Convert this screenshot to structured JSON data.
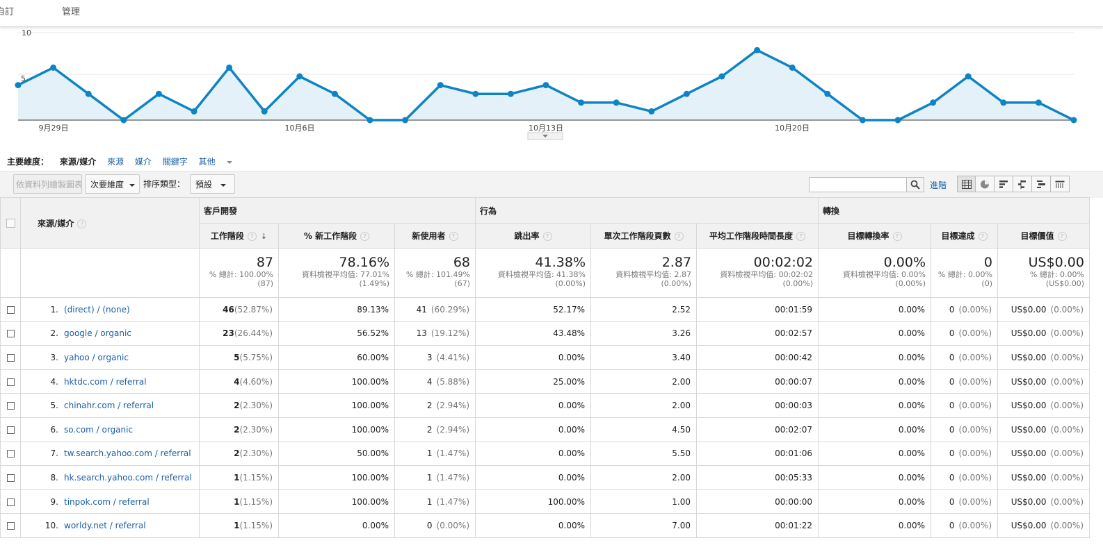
{
  "topnav": {
    "items": [
      "自訂",
      "管理"
    ]
  },
  "chart_data": {
    "type": "area",
    "x_tick_labels": [
      "9月29日",
      "10月6日",
      "10月13日",
      "10月20日"
    ],
    "y_tick_labels": [
      "10",
      "5"
    ],
    "ylim": [
      0,
      10
    ],
    "series": [
      {
        "values": [
          4,
          6,
          3,
          0,
          3,
          1,
          6,
          1,
          5,
          3,
          0,
          0,
          4,
          3,
          3,
          4,
          2,
          2,
          1,
          3,
          5,
          8,
          6,
          3,
          0,
          0,
          2,
          5,
          2,
          2,
          0
        ]
      }
    ],
    "grid": true,
    "colors": {
      "line": "#0e84c5",
      "fill": "#e4f1f9"
    }
  },
  "dimensions": {
    "label": "主要維度：",
    "active": "來源/媒介",
    "links": [
      "來源",
      "媒介",
      "關鍵字"
    ],
    "more": "其他"
  },
  "toolbar": {
    "plot_rows": "依資料列繪製圖表",
    "secondary": "次要維度",
    "sort_label": "排序類型：",
    "sort_value": "預設",
    "advanced": "進階"
  },
  "table": {
    "dim_header": "來源/媒介",
    "groups": [
      "客戶開發",
      "行為",
      "轉換"
    ],
    "columns": [
      "工作階段",
      "% 新工作階段",
      "新使用者",
      "跳出率",
      "單次工作階段頁數",
      "平均工作階段時間長度",
      "目標轉換率",
      "目標達成",
      "目標價值"
    ],
    "totals": [
      {
        "big": "87",
        "l1": "% 總計: 100.00%",
        "l2": "(87)"
      },
      {
        "big": "78.16%",
        "l1": "資料檢視平均值: 77.01%",
        "l2": "(1.49%)"
      },
      {
        "big": "68",
        "l1": "% 總計: 101.49%",
        "l2": "(67)"
      },
      {
        "big": "41.38%",
        "l1": "資料檢視平均值: 41.38%",
        "l2": "(0.00%)"
      },
      {
        "big": "2.87",
        "l1": "資料檢視平均值: 2.87",
        "l2": "(0.00%)"
      },
      {
        "big": "00:02:02",
        "l1": "資料檢視平均值: 00:02:02",
        "l2": "(0.00%)"
      },
      {
        "big": "0.00%",
        "l1": "資料檢視平均值: 0.00%",
        "l2": "(0.00%)"
      },
      {
        "big": "0",
        "l1": "% 總計: 0.00%",
        "l2": "(0)"
      },
      {
        "big": "US$0.00",
        "l1": "% 總計: 0.00%",
        "l2": "(US$0.00)"
      }
    ],
    "rows": [
      {
        "num": "1.",
        "source": "(direct) / (none)",
        "sessions": "46",
        "sessions_pct": "(52.87%)",
        "new_pct": "89.13%",
        "new_users": "41",
        "new_users_pct": "(60.29%)",
        "bounce": "52.17%",
        "pages": "2.52",
        "duration": "00:01:59",
        "conv_rate": "0.00%",
        "completions": "0",
        "completions_pct": "(0.00%)",
        "value": "US$0.00",
        "value_pct": "(0.00%)"
      },
      {
        "num": "2.",
        "source": "google / organic",
        "sessions": "23",
        "sessions_pct": "(26.44%)",
        "new_pct": "56.52%",
        "new_users": "13",
        "new_users_pct": "(19.12%)",
        "bounce": "43.48%",
        "pages": "3.26",
        "duration": "00:02:57",
        "conv_rate": "0.00%",
        "completions": "0",
        "completions_pct": "(0.00%)",
        "value": "US$0.00",
        "value_pct": "(0.00%)"
      },
      {
        "num": "3.",
        "source": "yahoo / organic",
        "sessions": "5",
        "sessions_pct": "(5.75%)",
        "new_pct": "60.00%",
        "new_users": "3",
        "new_users_pct": "(4.41%)",
        "bounce": "0.00%",
        "pages": "3.40",
        "duration": "00:00:42",
        "conv_rate": "0.00%",
        "completions": "0",
        "completions_pct": "(0.00%)",
        "value": "US$0.00",
        "value_pct": "(0.00%)"
      },
      {
        "num": "4.",
        "source": "hktdc.com / referral",
        "sessions": "4",
        "sessions_pct": "(4.60%)",
        "new_pct": "100.00%",
        "new_users": "4",
        "new_users_pct": "(5.88%)",
        "bounce": "25.00%",
        "pages": "2.00",
        "duration": "00:00:07",
        "conv_rate": "0.00%",
        "completions": "0",
        "completions_pct": "(0.00%)",
        "value": "US$0.00",
        "value_pct": "(0.00%)"
      },
      {
        "num": "5.",
        "source": "chinahr.com / referral",
        "sessions": "2",
        "sessions_pct": "(2.30%)",
        "new_pct": "100.00%",
        "new_users": "2",
        "new_users_pct": "(2.94%)",
        "bounce": "0.00%",
        "pages": "2.00",
        "duration": "00:00:03",
        "conv_rate": "0.00%",
        "completions": "0",
        "completions_pct": "(0.00%)",
        "value": "US$0.00",
        "value_pct": "(0.00%)"
      },
      {
        "num": "6.",
        "source": "so.com / organic",
        "sessions": "2",
        "sessions_pct": "(2.30%)",
        "new_pct": "100.00%",
        "new_users": "2",
        "new_users_pct": "(2.94%)",
        "bounce": "0.00%",
        "pages": "4.50",
        "duration": "00:02:07",
        "conv_rate": "0.00%",
        "completions": "0",
        "completions_pct": "(0.00%)",
        "value": "US$0.00",
        "value_pct": "(0.00%)"
      },
      {
        "num": "7.",
        "source": "tw.search.yahoo.com / referral",
        "sessions": "2",
        "sessions_pct": "(2.30%)",
        "new_pct": "50.00%",
        "new_users": "1",
        "new_users_pct": "(1.47%)",
        "bounce": "0.00%",
        "pages": "5.50",
        "duration": "00:01:06",
        "conv_rate": "0.00%",
        "completions": "0",
        "completions_pct": "(0.00%)",
        "value": "US$0.00",
        "value_pct": "(0.00%)"
      },
      {
        "num": "8.",
        "source": "hk.search.yahoo.com / referral",
        "sessions": "1",
        "sessions_pct": "(1.15%)",
        "new_pct": "100.00%",
        "new_users": "1",
        "new_users_pct": "(1.47%)",
        "bounce": "0.00%",
        "pages": "2.00",
        "duration": "00:05:33",
        "conv_rate": "0.00%",
        "completions": "0",
        "completions_pct": "(0.00%)",
        "value": "US$0.00",
        "value_pct": "(0.00%)"
      },
      {
        "num": "9.",
        "source": "tinpok.com / referral",
        "sessions": "1",
        "sessions_pct": "(1.15%)",
        "new_pct": "100.00%",
        "new_users": "1",
        "new_users_pct": "(1.47%)",
        "bounce": "100.00%",
        "pages": "1.00",
        "duration": "00:00:00",
        "conv_rate": "0.00%",
        "completions": "0",
        "completions_pct": "(0.00%)",
        "value": "US$0.00",
        "value_pct": "(0.00%)"
      },
      {
        "num": "10.",
        "source": "worldy.net / referral",
        "sessions": "1",
        "sessions_pct": "(1.15%)",
        "new_pct": "0.00%",
        "new_users": "0",
        "new_users_pct": "(0.00%)",
        "bounce": "0.00%",
        "pages": "7.00",
        "duration": "00:01:22",
        "conv_rate": "0.00%",
        "completions": "0",
        "completions_pct": "(0.00%)",
        "value": "US$0.00",
        "value_pct": "(0.00%)"
      }
    ]
  },
  "icons": {
    "search": "search-icon",
    "views": [
      "table-view-icon",
      "pie-view-icon",
      "performance-view-icon",
      "comparison-view-icon",
      "term-cloud-view-icon",
      "pivot-view-icon"
    ]
  }
}
